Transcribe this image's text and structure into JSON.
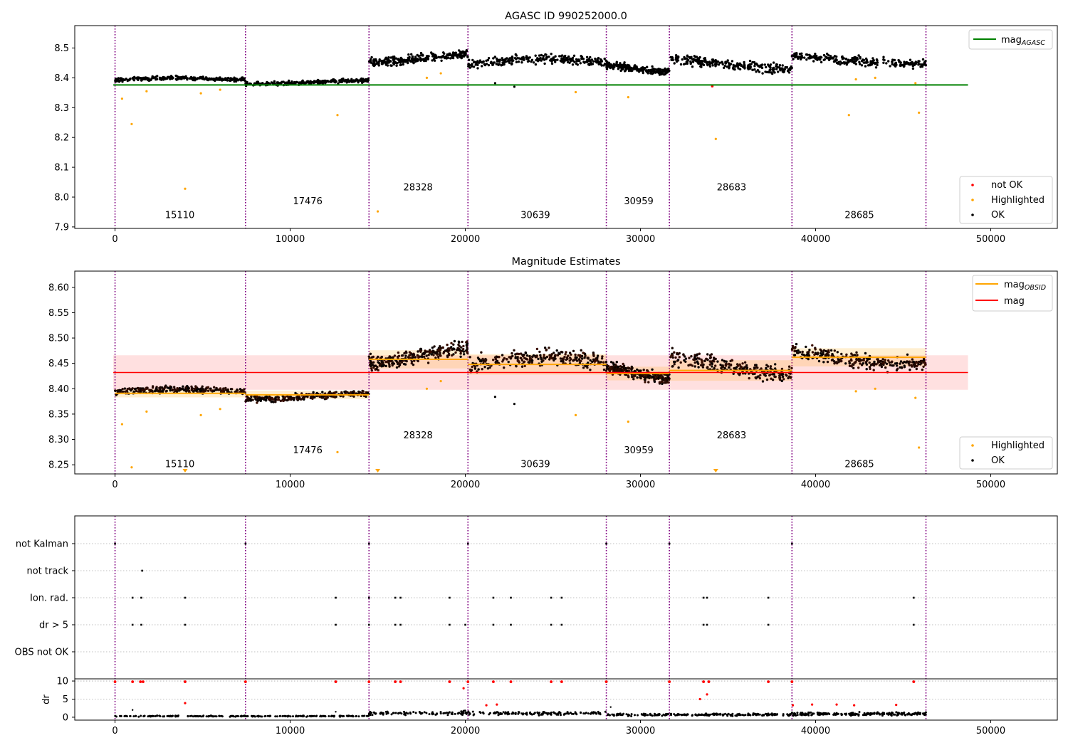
{
  "chart_data": [
    {
      "type": "scatter",
      "title": "AGASC ID 990252000.0",
      "xlabel": "",
      "ylabel": "",
      "xlim": [
        -2300,
        53800
      ],
      "ylim": [
        7.895,
        8.575
      ],
      "xticks": [
        0,
        10000,
        20000,
        30000,
        40000,
        50000
      ],
      "xtick_labels": [
        "0",
        "10000",
        "20000",
        "30000",
        "40000",
        "50000"
      ],
      "yticks": [
        7.9,
        8.0,
        8.1,
        8.2,
        8.3,
        8.4,
        8.5
      ],
      "ytick_labels": [
        "7.9",
        "8.0",
        "8.1",
        "8.2",
        "8.3",
        "8.4",
        "8.5"
      ],
      "obsid_boundaries": [
        0,
        7450,
        14500,
        20150,
        28050,
        31650,
        38650,
        46300
      ],
      "obsids": [
        {
          "label": "15110",
          "x": 3700,
          "y": 7.93
        },
        {
          "label": "17476",
          "x": 11000,
          "y": 7.976
        },
        {
          "label": "28328",
          "x": 17300,
          "y": 8.023
        },
        {
          "label": "30639",
          "x": 24000,
          "y": 7.93
        },
        {
          "label": "30959",
          "x": 29900,
          "y": 7.976
        },
        {
          "label": "28683",
          "x": 35200,
          "y": 8.023
        },
        {
          "label": "28685",
          "x": 42500,
          "y": 7.93
        }
      ],
      "segments": [
        {
          "x0": 0,
          "x1": 7450,
          "base": 8.393,
          "spread": 0.018
        },
        {
          "x0": 7450,
          "x1": 14500,
          "base": 8.386,
          "spread": 0.018
        },
        {
          "x0": 14500,
          "x1": 20150,
          "base": 8.465,
          "spread": 0.04
        },
        {
          "x0": 20150,
          "x1": 28050,
          "base": 8.448,
          "spread": 0.045
        },
        {
          "x0": 28050,
          "x1": 31650,
          "base": 8.432,
          "spread": 0.03
        },
        {
          "x0": 31650,
          "x1": 38650,
          "base": 8.445,
          "spread": 0.045
        },
        {
          "x0": 38650,
          "x1": 46300,
          "base": 8.462,
          "spread": 0.04
        }
      ],
      "mag_agasc": 8.376,
      "highlighted_points": [
        [
          400,
          8.33
        ],
        [
          950,
          8.245
        ],
        [
          1800,
          8.355
        ],
        [
          4000,
          8.028
        ],
        [
          4900,
          8.348
        ],
        [
          6000,
          8.36
        ],
        [
          12700,
          8.275
        ],
        [
          15000,
          7.952
        ],
        [
          17800,
          8.4
        ],
        [
          18600,
          8.415
        ],
        [
          26300,
          8.352
        ],
        [
          29300,
          8.335
        ],
        [
          34300,
          8.195
        ],
        [
          41900,
          8.275
        ],
        [
          42300,
          8.395
        ],
        [
          43400,
          8.4
        ],
        [
          45700,
          8.382
        ],
        [
          45900,
          8.283
        ]
      ],
      "not_ok_points": [
        [
          34100,
          8.372
        ]
      ],
      "ok_outliers": [
        [
          21700,
          8.382
        ],
        [
          22800,
          8.37
        ]
      ],
      "legend_top": [
        {
          "label": "mag",
          "sub": "AGASC",
          "color": "#008000"
        }
      ],
      "legend_bottom": [
        {
          "label": "not OK",
          "color": "#ff0000"
        },
        {
          "label": "Highlighted",
          "color": "#ffa500"
        },
        {
          "label": "OK",
          "color": "#000000"
        }
      ],
      "legend_top_position": "upper right",
      "legend_bottom_position": "lower right"
    },
    {
      "type": "scatter",
      "title": "Magnitude Estimates",
      "xlabel": "",
      "ylabel": "",
      "xlim": [
        -2300,
        53800
      ],
      "ylim": [
        8.232,
        8.632
      ],
      "xticks": [
        0,
        10000,
        20000,
        30000,
        40000,
        50000
      ],
      "xtick_labels": [
        "0",
        "10000",
        "20000",
        "30000",
        "40000",
        "50000"
      ],
      "yticks": [
        8.25,
        8.3,
        8.35,
        8.4,
        8.45,
        8.5,
        8.55,
        8.6
      ],
      "ytick_labels": [
        "8.25",
        "8.30",
        "8.35",
        "8.40",
        "8.45",
        "8.50",
        "8.55",
        "8.60"
      ],
      "obsid_boundaries": [
        0,
        7450,
        14500,
        20150,
        28050,
        31650,
        38650,
        46300
      ],
      "obsids": [
        {
          "label": "15110",
          "x": 3700,
          "y": 8.245
        },
        {
          "label": "17476",
          "x": 11000,
          "y": 8.273
        },
        {
          "label": "28328",
          "x": 17300,
          "y": 8.302
        },
        {
          "label": "30639",
          "x": 24000,
          "y": 8.245
        },
        {
          "label": "30959",
          "x": 29900,
          "y": 8.273
        },
        {
          "label": "28683",
          "x": 35200,
          "y": 8.302
        },
        {
          "label": "28685",
          "x": 42500,
          "y": 8.245
        }
      ],
      "segments": [
        {
          "x0": 0,
          "x1": 7450,
          "base": 8.393,
          "spread": 0.018,
          "mag_obsid": 8.391
        },
        {
          "x0": 7450,
          "x1": 14500,
          "base": 8.386,
          "spread": 0.018,
          "mag_obsid": 8.388
        },
        {
          "x0": 14500,
          "x1": 20150,
          "base": 8.465,
          "spread": 0.04,
          "mag_obsid": 8.458
        },
        {
          "x0": 20150,
          "x1": 28050,
          "base": 8.448,
          "spread": 0.045,
          "mag_obsid": 8.448
        },
        {
          "x0": 28050,
          "x1": 31650,
          "base": 8.432,
          "spread": 0.03,
          "mag_obsid": 8.43
        },
        {
          "x0": 31650,
          "x1": 38650,
          "base": 8.445,
          "spread": 0.045,
          "mag_obsid": 8.436
        },
        {
          "x0": 38650,
          "x1": 46300,
          "base": 8.462,
          "spread": 0.04,
          "mag_obsid": 8.462
        }
      ],
      "mag": 8.432,
      "mag_band": [
        8.398,
        8.466
      ],
      "highlighted_points": [
        [
          400,
          8.33
        ],
        [
          950,
          8.245
        ],
        [
          1800,
          8.355
        ],
        [
          4900,
          8.348
        ],
        [
          6000,
          8.36
        ],
        [
          12700,
          8.275
        ],
        [
          17800,
          8.4
        ],
        [
          18600,
          8.415
        ],
        [
          26300,
          8.348
        ],
        [
          29300,
          8.335
        ],
        [
          42300,
          8.395
        ],
        [
          43400,
          8.4
        ],
        [
          45700,
          8.382
        ],
        [
          45900,
          8.284
        ]
      ],
      "offscale_highlighted": [
        4000,
        15000,
        34300
      ],
      "ok_outliers": [
        [
          21700,
          8.384
        ],
        [
          22800,
          8.37
        ]
      ],
      "legend_top": [
        {
          "label": "mag",
          "sub": "OBSID",
          "color": "#ffa500"
        },
        {
          "label": "mag",
          "sub": "",
          "color": "#ff0000"
        }
      ],
      "legend_bottom": [
        {
          "label": "Highlighted",
          "color": "#ffa500"
        },
        {
          "label": "OK",
          "color": "#000000"
        }
      ],
      "legend_top_position": "upper right",
      "legend_bottom_position": "lower right"
    },
    {
      "type": "scatter",
      "title": "",
      "xlim": [
        -2300,
        53800
      ],
      "xticks": [
        0,
        10000,
        20000,
        30000,
        40000,
        50000
      ],
      "xtick_labels": [
        "0",
        "10000",
        "20000",
        "30000",
        "40000",
        "50000"
      ],
      "flag_labels": [
        "not Kalman",
        "not track",
        "Ion. rad.",
        "dr > 5",
        "OBS not OK"
      ],
      "obsid_boundaries": [
        0,
        7450,
        14500,
        20150,
        28050,
        31650,
        38650,
        46300
      ],
      "flags": {
        "not Kalman": [
          0,
          7450,
          14500,
          20150,
          28050,
          31650,
          38650
        ],
        "not track": [
          1550
        ],
        "Ion. rad.": [
          1000,
          1500,
          4000,
          12600,
          14500,
          16000,
          16300,
          19100,
          21600,
          22600,
          24900,
          25500,
          33600,
          33800,
          37300,
          45600
        ],
        "dr > 5": [
          1000,
          1500,
          4000,
          12600,
          14500,
          16000,
          16300,
          19100,
          20000,
          21600,
          22600,
          24900,
          25500,
          33600,
          33800,
          37300,
          45600
        ],
        "OBS not OK": []
      },
      "dr": {
        "ylabel": "dr",
        "ylim": [
          -0.8,
          10.6
        ],
        "yticks": [
          0,
          5,
          10
        ],
        "ytick_labels": [
          "0",
          "5",
          "10"
        ],
        "segments": [
          {
            "x0": 0,
            "x1": 14500,
            "base": 0.3
          },
          {
            "x0": 14500,
            "x1": 28050,
            "base": 1.1
          },
          {
            "x0": 28050,
            "x1": 38650,
            "base": 0.7
          },
          {
            "x0": 38650,
            "x1": 46300,
            "base": 0.9
          }
        ],
        "red_at_10": [
          0,
          1000,
          1450,
          1600,
          4000,
          7450,
          12600,
          14500,
          16000,
          16300,
          19100,
          20150,
          21600,
          22600,
          24900,
          25500,
          28050,
          31650,
          33600,
          33900,
          37300,
          38650,
          45600
        ],
        "red_points": [
          [
            19900,
            8.0
          ],
          [
            21200,
            3.3
          ],
          [
            21800,
            3.5
          ],
          [
            4000,
            3.9
          ],
          [
            33800,
            6.3
          ],
          [
            33400,
            5.0
          ],
          [
            38700,
            3.3
          ],
          [
            39800,
            3.5
          ],
          [
            41200,
            3.5
          ],
          [
            42200,
            3.3
          ],
          [
            44600,
            3.4
          ]
        ],
        "black_outliers": [
          [
            1000,
            2.0
          ],
          [
            12600,
            1.5
          ],
          [
            28300,
            2.8
          ]
        ]
      }
    }
  ]
}
